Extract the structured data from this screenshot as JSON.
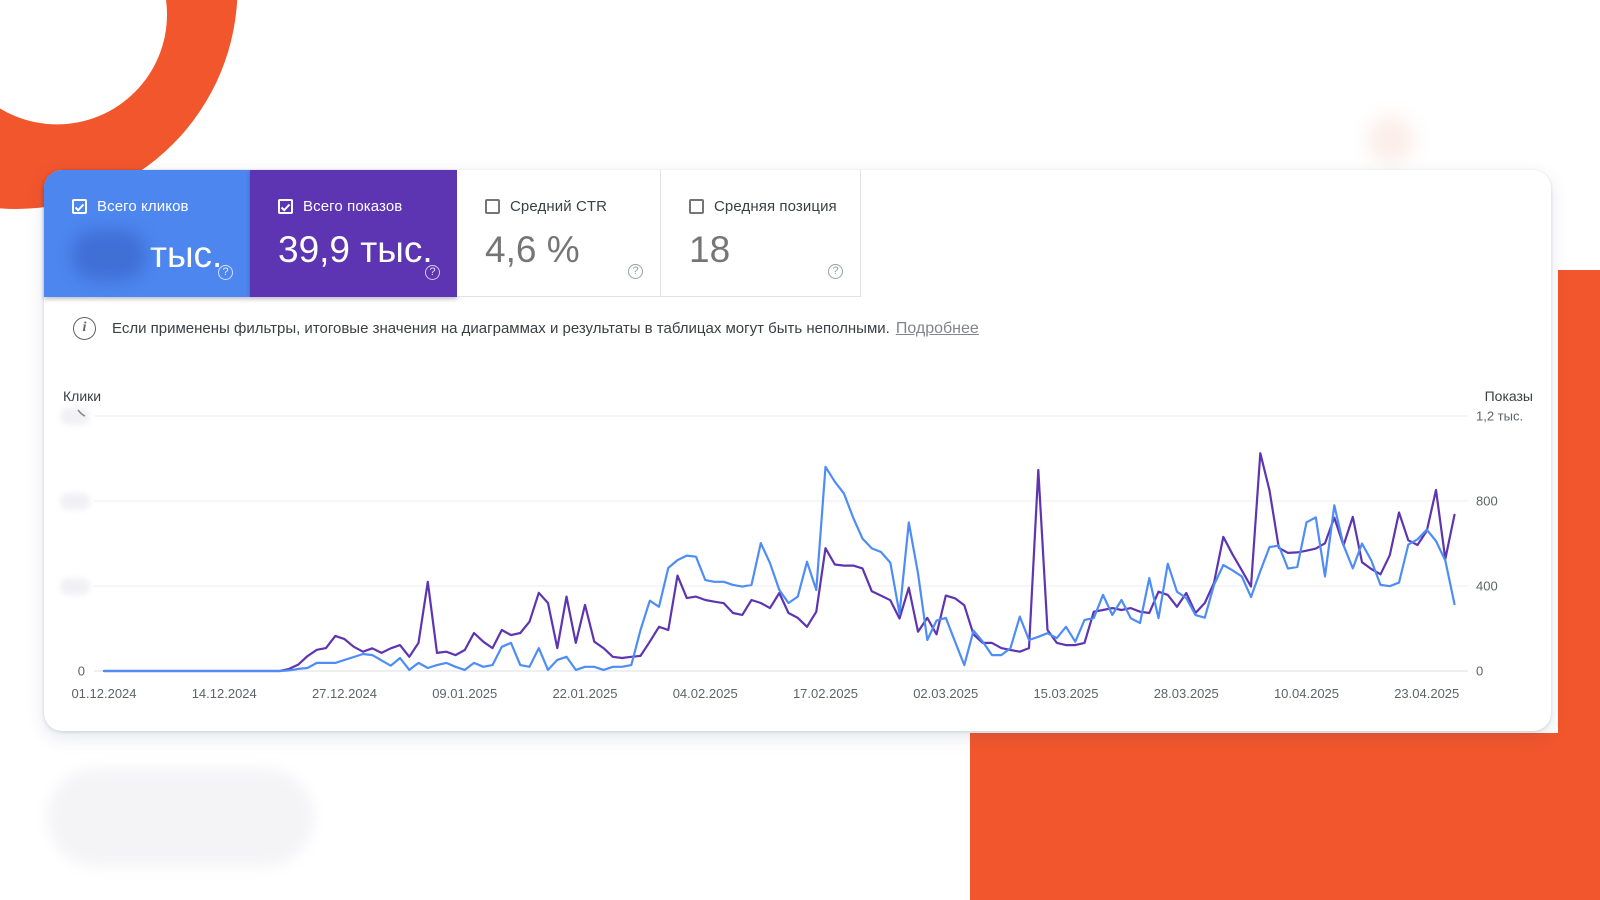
{
  "page": {
    "background": "#ffffff",
    "accent_orange": "#f2562c"
  },
  "metrics": {
    "cards": [
      {
        "label": "Всего кликов",
        "value": "тыс.",
        "value_blurred_prefix": true,
        "checked": true,
        "background": "#4c86ee",
        "help_icon": "?"
      },
      {
        "label": "Всего показов",
        "value": "39,9 тыс.",
        "checked": true,
        "background": "#5d34b1",
        "help_icon": "?"
      },
      {
        "label": "Средний CTR",
        "value": "4,6 %",
        "checked": false,
        "background": "#ffffff",
        "help_icon": "?"
      },
      {
        "label": "Средняя позиция",
        "value": "18",
        "checked": false,
        "background": "#ffffff",
        "help_icon": "?"
      }
    ]
  },
  "banner": {
    "icon": "info-icon",
    "text": "Если применены фильтры, итоговые значения на диаграммах и результаты в таблицах могут быть неполными.",
    "link_label": "Подробнее"
  },
  "chart_data": {
    "type": "line",
    "title": "",
    "x_tick_labels": [
      "01.12.2024",
      "14.12.2024",
      "27.12.2024",
      "09.01.2025",
      "22.01.2025",
      "04.02.2025",
      "17.02.2025",
      "02.03.2025",
      "15.03.2025",
      "28.03.2025",
      "10.04.2025",
      "23.04.2025"
    ],
    "dates": [
      "2024-12-01",
      "2024-12-02",
      "2024-12-03",
      "2024-12-04",
      "2024-12-05",
      "2024-12-06",
      "2024-12-07",
      "2024-12-08",
      "2024-12-09",
      "2024-12-10",
      "2024-12-11",
      "2024-12-12",
      "2024-12-13",
      "2024-12-14",
      "2024-12-15",
      "2024-12-16",
      "2024-12-17",
      "2024-12-18",
      "2024-12-19",
      "2024-12-20",
      "2024-12-21",
      "2024-12-22",
      "2024-12-23",
      "2024-12-24",
      "2024-12-25",
      "2024-12-26",
      "2024-12-27",
      "2024-12-28",
      "2024-12-29",
      "2024-12-30",
      "2024-12-31",
      "2025-01-01",
      "2025-01-02",
      "2025-01-03",
      "2025-01-04",
      "2025-01-05",
      "2025-01-06",
      "2025-01-07",
      "2025-01-08",
      "2025-01-09",
      "2025-01-10",
      "2025-01-11",
      "2025-01-12",
      "2025-01-13",
      "2025-01-14",
      "2025-01-15",
      "2025-01-16",
      "2025-01-17",
      "2025-01-18",
      "2025-01-19",
      "2025-01-20",
      "2025-01-21",
      "2025-01-22",
      "2025-01-23",
      "2025-01-24",
      "2025-01-25",
      "2025-01-26",
      "2025-01-27",
      "2025-01-28",
      "2025-01-29",
      "2025-01-30",
      "2025-01-31",
      "2025-02-01",
      "2025-02-02",
      "2025-02-03",
      "2025-02-04",
      "2025-02-05",
      "2025-02-06",
      "2025-02-07",
      "2025-02-08",
      "2025-02-09",
      "2025-02-10",
      "2025-02-11",
      "2025-02-12",
      "2025-02-13",
      "2025-02-14",
      "2025-02-15",
      "2025-02-16",
      "2025-02-17",
      "2025-02-18",
      "2025-02-19",
      "2025-02-20",
      "2025-02-21",
      "2025-02-22",
      "2025-02-23",
      "2025-02-24",
      "2025-02-25",
      "2025-02-26",
      "2025-02-27",
      "2025-02-28",
      "2025-03-01",
      "2025-03-02",
      "2025-03-03",
      "2025-03-04",
      "2025-03-05",
      "2025-03-06",
      "2025-03-07",
      "2025-03-08",
      "2025-03-09",
      "2025-03-10",
      "2025-03-11",
      "2025-03-12",
      "2025-03-13",
      "2025-03-14",
      "2025-03-15",
      "2025-03-16",
      "2025-03-17",
      "2025-03-18",
      "2025-03-19",
      "2025-03-20",
      "2025-03-21",
      "2025-03-22",
      "2025-03-23",
      "2025-03-24",
      "2025-03-25",
      "2025-03-26",
      "2025-03-27",
      "2025-03-28",
      "2025-03-29",
      "2025-03-30",
      "2025-03-31",
      "2025-04-01",
      "2025-04-02",
      "2025-04-03",
      "2025-04-04",
      "2025-04-05",
      "2025-04-06",
      "2025-04-07",
      "2025-04-08",
      "2025-04-09",
      "2025-04-10",
      "2025-04-11",
      "2025-04-12",
      "2025-04-13",
      "2025-04-14",
      "2025-04-15",
      "2025-04-16",
      "2025-04-17",
      "2025-04-18",
      "2025-04-19",
      "2025-04-20",
      "2025-04-21",
      "2025-04-22",
      "2025-04-23",
      "2025-04-24",
      "2025-04-25",
      "2025-04-26"
    ],
    "left_axis": {
      "label": "Клики",
      "visible_tick_labels": [
        "0"
      ],
      "note": "numeric tick labels are blurred out in the screenshot"
    },
    "right_axis": {
      "label": "Показы",
      "tick_labels": [
        "0",
        "400",
        "800",
        "1,2 тыс."
      ],
      "tick_values": [
        0,
        400,
        800,
        1200
      ],
      "max": 1200
    },
    "grid": "horizontal",
    "legend_position": "none",
    "series": [
      {
        "name": "Всего кликов",
        "color": "#4e8df6",
        "axis": "left",
        "note": "left axis labels blurred in screenshot; values estimated on the right-axis (0-1200) pixel scale",
        "values": [
          0,
          0,
          0,
          0,
          0,
          0,
          0,
          0,
          0,
          0,
          0,
          0,
          0,
          0,
          0,
          0,
          0,
          0,
          0,
          0,
          3,
          10,
          14,
          38,
          38,
          38,
          52,
          66,
          80,
          75,
          50,
          25,
          61,
          5,
          38,
          14,
          28,
          38,
          20,
          5,
          38,
          20,
          28,
          114,
          132,
          28,
          20,
          108,
          5,
          52,
          67,
          5,
          20,
          20,
          5,
          20,
          20,
          28,
          193,
          331,
          302,
          485,
          522,
          543,
          538,
          428,
          420,
          420,
          405,
          397,
          405,
          602,
          508,
          381,
          320,
          350,
          514,
          381,
          961,
          891,
          835,
          720,
          623,
          577,
          560,
          510,
          270,
          699,
          460,
          146,
          237,
          250,
          139,
          28,
          190,
          138,
          75,
          75,
          108,
          256,
          146,
          161,
          178,
          155,
          208,
          138,
          240,
          249,
          358,
          264,
          334,
          248,
          226,
          437,
          249,
          505,
          373,
          343,
          263,
          251,
          405,
          499,
          474,
          445,
          348,
          470,
          583,
          590,
          482,
          490,
          700,
          723,
          445,
          780,
          592,
          483,
          600,
          520,
          405,
          399,
          416,
          595,
          620,
          665,
          612,
          520,
          315
        ]
      },
      {
        "name": "Всего показов",
        "color": "#5e35b1",
        "axis": "right",
        "values": [
          0,
          0,
          0,
          0,
          0,
          0,
          0,
          0,
          0,
          0,
          0,
          0,
          0,
          0,
          0,
          0,
          0,
          0,
          0,
          0,
          10,
          30,
          70,
          100,
          108,
          165,
          150,
          114,
          91,
          107,
          85,
          107,
          122,
          67,
          132,
          420,
          85,
          91,
          75,
          99,
          179,
          138,
          108,
          193,
          169,
          179,
          232,
          368,
          320,
          108,
          350,
          132,
          311,
          138,
          108,
          67,
          61,
          67,
          71,
          138,
          208,
          193,
          449,
          343,
          350,
          334,
          326,
          319,
          273,
          264,
          334,
          320,
          296,
          367,
          273,
          250,
          208,
          279,
          578,
          501,
          496,
          496,
          483,
          375,
          355,
          333,
          247,
          392,
          185,
          250,
          172,
          355,
          342,
          309,
          172,
          132,
          132,
          108,
          99,
          91,
          108,
          946,
          193,
          132,
          122,
          122,
          132,
          279,
          287,
          296,
          287,
          296,
          279,
          273,
          373,
          358,
          302,
          367,
          273,
          320,
          415,
          631,
          549,
          474,
          397,
          1025,
          850,
          580,
          556,
          558,
          566,
          576,
          601,
          722,
          591,
          725,
          512,
          480,
          455,
          545,
          746,
          615,
          593,
          660,
          852,
          527,
          735
        ]
      }
    ]
  }
}
